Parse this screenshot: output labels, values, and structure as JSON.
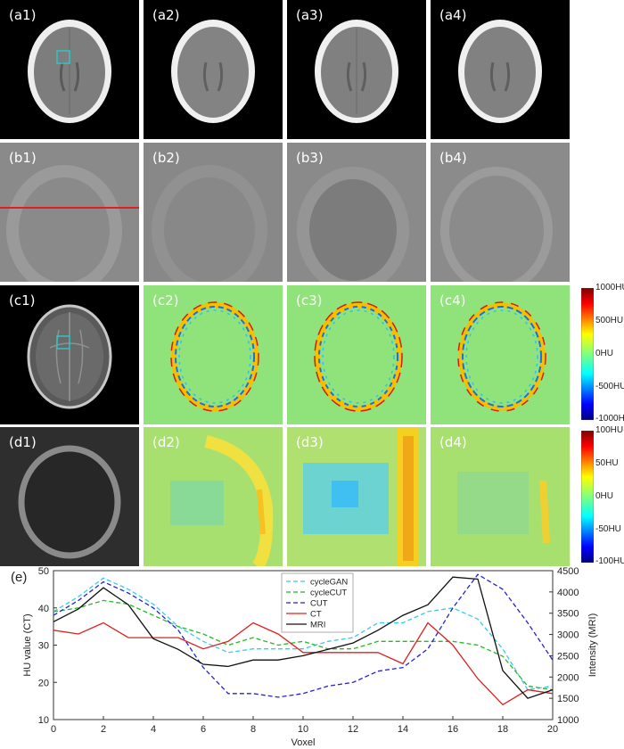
{
  "panels": {
    "a": [
      "(a1)",
      "(a2)",
      "(a3)",
      "(a4)"
    ],
    "b": [
      "(b1)",
      "(b2)",
      "(b3)",
      "(b4)"
    ],
    "c": [
      "(c1)",
      "(c2)",
      "(c3)",
      "(c4)"
    ],
    "d": [
      "(d1)",
      "(d2)",
      "(d3)",
      "(d4)"
    ],
    "e": "(e)"
  },
  "colorbar_c": {
    "ticks": [
      "1000HU",
      "500HU",
      "0HU",
      "-500HU",
      "-1000HU"
    ]
  },
  "colorbar_d": {
    "ticks": [
      "100HU",
      "50HU",
      "0HU",
      "-50HU",
      "-100HU"
    ]
  },
  "colors": {
    "roi_box": "#2ec4c4",
    "profile_line": "#e02020",
    "diff_background": "#90e27a"
  },
  "chart_data": {
    "type": "line",
    "xlabel": "Voxel",
    "ylabel": "HU value (CT)",
    "y2label": "Intensity (MRI)",
    "xlim": [
      0,
      20
    ],
    "ylim": [
      10,
      50
    ],
    "y2lim": [
      1000,
      4500
    ],
    "xticks": [
      0,
      2,
      4,
      6,
      8,
      10,
      12,
      14,
      16,
      18,
      20
    ],
    "yticks": [
      10,
      20,
      30,
      40,
      50
    ],
    "y2ticks": [
      1000,
      1500,
      2000,
      2500,
      3000,
      3500,
      4000,
      4500
    ],
    "legend_position": "top-center",
    "series": [
      {
        "name": "cycleGAN",
        "axis": "left",
        "style": "dashed",
        "color": "#33ccee",
        "x": [
          0,
          1,
          2,
          3,
          4,
          5,
          6,
          7,
          8,
          9,
          10,
          11,
          12,
          13,
          14,
          15,
          16,
          17,
          18,
          19,
          20
        ],
        "values": [
          39,
          43,
          48,
          45,
          41,
          35,
          31,
          28,
          29,
          29,
          29,
          31,
          32,
          36,
          36,
          39,
          40,
          37,
          29,
          18,
          19
        ]
      },
      {
        "name": "cycleCUT",
        "axis": "left",
        "style": "dashed",
        "color": "#22bb22",
        "x": [
          0,
          1,
          2,
          3,
          4,
          5,
          6,
          7,
          8,
          9,
          10,
          11,
          12,
          13,
          14,
          15,
          16,
          17,
          18,
          19,
          20
        ],
        "values": [
          39,
          40,
          42,
          41,
          38,
          35,
          33,
          30,
          32,
          30,
          31,
          29,
          29,
          31,
          31,
          31,
          31,
          30,
          27,
          19,
          18
        ]
      },
      {
        "name": "CUT",
        "axis": "left",
        "style": "dashed",
        "color": "#2222dd",
        "x": [
          0,
          1,
          2,
          3,
          4,
          5,
          6,
          7,
          8,
          9,
          10,
          11,
          12,
          13,
          14,
          15,
          16,
          17,
          18,
          19,
          20
        ],
        "values": [
          38,
          42,
          47,
          44,
          40,
          34,
          24,
          17,
          17,
          16,
          17,
          19,
          20,
          23,
          24,
          29,
          40,
          49,
          45,
          36,
          26
        ]
      },
      {
        "name": "CT",
        "axis": "left",
        "style": "solid",
        "color": "#e02020",
        "x": [
          0,
          1,
          2,
          3,
          4,
          5,
          6,
          7,
          8,
          9,
          10,
          11,
          12,
          13,
          14,
          15,
          16,
          17,
          18,
          19,
          20
        ],
        "values": [
          34,
          33,
          36,
          32,
          32,
          32,
          29,
          31,
          36,
          33,
          28,
          28,
          28,
          28,
          25,
          36,
          30,
          21,
          14,
          18,
          17
        ]
      },
      {
        "name": "MRI",
        "axis": "right",
        "style": "solid",
        "color": "#111111",
        "x": [
          0,
          1,
          2,
          3,
          4,
          5,
          6,
          7,
          8,
          9,
          10,
          11,
          12,
          13,
          14,
          15,
          16,
          17,
          18,
          19,
          20
        ],
        "values": [
          3300,
          3600,
          4100,
          3700,
          2900,
          2650,
          2300,
          2250,
          2400,
          2400,
          2500,
          2650,
          2800,
          3100,
          3450,
          3700,
          4350,
          4300,
          2150,
          1500,
          1700
        ]
      }
    ]
  }
}
